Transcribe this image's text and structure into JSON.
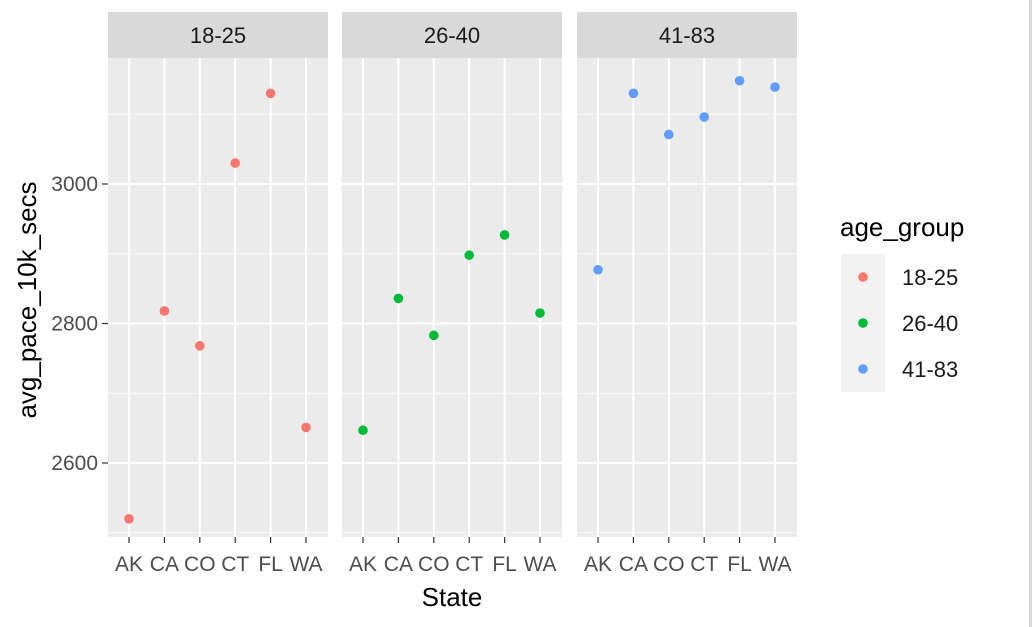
{
  "chart_data": {
    "type": "scatter",
    "facet_by": "age_group",
    "panels": [
      "18-25",
      "26-40",
      "41-83"
    ],
    "categories": [
      "AK",
      "CA",
      "CO",
      "CT",
      "FL",
      "WA"
    ],
    "xlabel": "State",
    "ylabel": "avg_pace_10k_secs",
    "yticks": [
      2600,
      2800,
      3000
    ],
    "ylim": [
      2495,
      3200
    ],
    "grid": true,
    "legend": {
      "title": "age_group",
      "position": "right",
      "entries": [
        "18-25",
        "26-40",
        "41-83"
      ]
    },
    "series": [
      {
        "name": "18-25",
        "color": "#F8766D",
        "values": [
          2520,
          2818,
          2768,
          3030,
          3130,
          2651
        ]
      },
      {
        "name": "26-40",
        "color": "#00BA38",
        "values": [
          2647,
          2836,
          2783,
          2898,
          2927,
          2815
        ]
      },
      {
        "name": "41-83",
        "color": "#619CFF",
        "values": [
          2877,
          3130,
          3071,
          3096,
          3148,
          3139
        ]
      }
    ]
  }
}
